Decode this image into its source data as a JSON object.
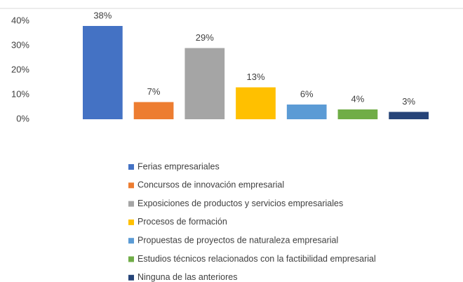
{
  "chart_data": {
    "type": "bar",
    "series": [
      {
        "name": "Ferias empresariales",
        "color": "#4472c4",
        "values": [
          38
        ],
        "value_labels": [
          "38%"
        ]
      },
      {
        "name": "Concursos de innovación empresarial",
        "color": "#ed7d31",
        "values": [
          7
        ],
        "value_labels": [
          "7%"
        ]
      },
      {
        "name": "Exposiciones de productos y servicios empresariales",
        "color": "#a5a5a5",
        "values": [
          29
        ],
        "value_labels": [
          "29%"
        ]
      },
      {
        "name": "Procesos de formación",
        "color": "#ffc000",
        "values": [
          13
        ],
        "value_labels": [
          "13%"
        ]
      },
      {
        "name": "Propuestas de proyectos de naturaleza empresarial",
        "color": "#5b9bd5",
        "values": [
          6
        ],
        "value_labels": [
          "6%"
        ]
      },
      {
        "name": "Estudios técnicos relacionados con la factibilidad empresarial",
        "color": "#70ad47",
        "values": [
          4
        ],
        "value_labels": [
          "4%"
        ]
      },
      {
        "name": "Ninguna de las anteriores",
        "color": "#264478",
        "values": [
          3
        ],
        "value_labels": [
          "3%"
        ]
      }
    ],
    "ylim": [
      0,
      40
    ],
    "yticks": [
      {
        "value": 0,
        "label": "0%"
      },
      {
        "value": 10,
        "label": "10%"
      },
      {
        "value": 20,
        "label": "20%"
      },
      {
        "value": 30,
        "label": "30%"
      },
      {
        "value": 40,
        "label": "40%"
      }
    ],
    "legend": "bottom"
  }
}
